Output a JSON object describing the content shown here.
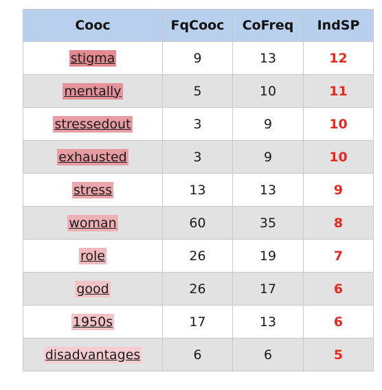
{
  "headers": [
    "Cooc",
    "FqCooc",
    "CoFreq",
    "IndSP"
  ],
  "rows": [
    {
      "term": "stigma",
      "fq": "9",
      "co": "13",
      "ind": "12",
      "color": "#e38a90"
    },
    {
      "term": "mentally",
      "fq": "5",
      "co": "10",
      "ind": "11",
      "color": "#e4939a"
    },
    {
      "term": "stressedout",
      "fq": "3",
      "co": "9",
      "ind": "10",
      "color": "#e79ca2"
    },
    {
      "term": "exhausted",
      "fq": "3",
      "co": "9",
      "ind": "10",
      "color": "#e79ca2"
    },
    {
      "term": "stress",
      "fq": "13",
      "co": "13",
      "ind": "9",
      "color": "#eaa6ab"
    },
    {
      "term": "woman",
      "fq": "60",
      "co": "35",
      "ind": "8",
      "color": "#edb0b4"
    },
    {
      "term": "role",
      "fq": "26",
      "co": "19",
      "ind": "7",
      "color": "#efb9bd"
    },
    {
      "term": "good",
      "fq": "26",
      "co": "17",
      "ind": "6",
      "color": "#f2c3c6"
    },
    {
      "term": "1950s",
      "fq": "17",
      "co": "13",
      "ind": "6",
      "color": "#f2c3c6"
    },
    {
      "term": "disadvantages",
      "fq": "6",
      "co": "6",
      "ind": "5",
      "color": "#f5cdd0"
    }
  ]
}
